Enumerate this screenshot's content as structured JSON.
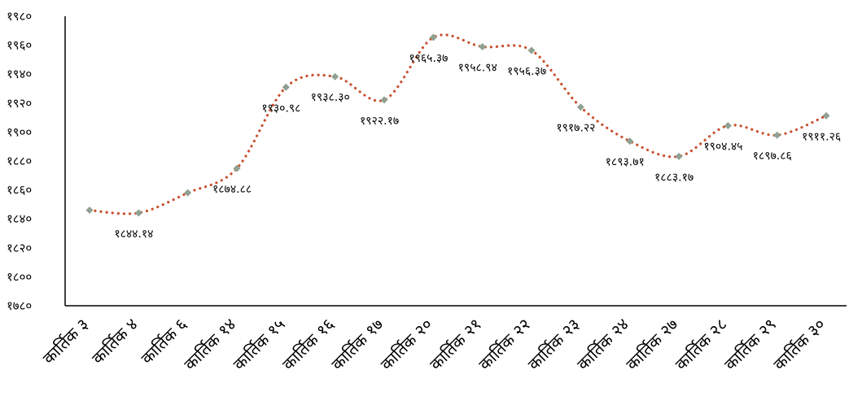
{
  "chart_data": {
    "type": "line",
    "categories": [
      "कार्तिक ३",
      "कार्तिक ४",
      "कार्तिक ६",
      "कार्तिक १४",
      "कार्तिक १५",
      "कार्तिक १६",
      "कार्तिक १७",
      "कार्तिक २०",
      "कार्तिक २१",
      "कार्तिक २२",
      "कार्तिक २३",
      "कार्तिक २४",
      "कार्तिक २७",
      "कार्तिक २८",
      "कार्तिक २९",
      "कार्तिक ३०"
    ],
    "values": [
      1846,
      1844.14,
      1858,
      1874.88,
      1930.98,
      1938.3,
      1922.17,
      1965.37,
      1958.94,
      1956.37,
      1917.22,
      1893.71,
      1883.17,
      1904.45,
      1897.86,
      1911.26
    ],
    "data_labels": [
      "",
      "१८४४.१४",
      "",
      "१८७४.८८",
      "१९३०.९८",
      "१९३८.३०",
      "१९२२.१७",
      "१९६५.३७",
      "१९५८.९४",
      "१९५६.३७",
      "१९१७.२२",
      "१८९३.७१",
      "१८८३.१७",
      "१९०४.४५",
      "१८९७.८६",
      "१९११.२६"
    ],
    "ylim": [
      1780,
      1980
    ],
    "yticks": [
      1780,
      1800,
      1820,
      1840,
      1860,
      1880,
      1900,
      1920,
      1940,
      1960,
      1980
    ],
    "ytick_labels": [
      "१७८०",
      "१८००",
      "१८२०",
      "१८४०",
      "१८६०",
      "१८८०",
      "१९००",
      "१९२०",
      "१९४०",
      "१९६०",
      "१९८०"
    ],
    "title": "",
    "xlabel": "",
    "ylabel": "",
    "grid": false,
    "legend": "none",
    "line_color": "#c8502f",
    "marker_color": "#8fa192",
    "line_style": "dotted",
    "smooth": true
  }
}
